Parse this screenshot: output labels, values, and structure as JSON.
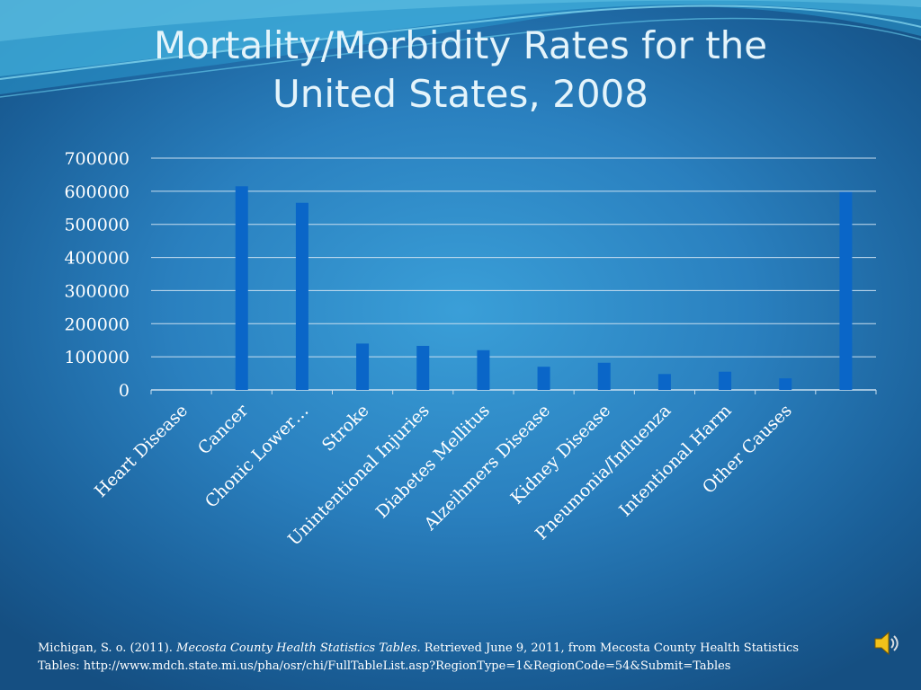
{
  "slide": {
    "title_line1": "Mortality/Morbidity Rates for the",
    "title_line2": "United States, 2008"
  },
  "citation": {
    "author": "Michigan, S. o. (2011). ",
    "work": "Mecosta County Health Statistics Tables.",
    "line1_rest": " Retrieved June 9, 2011, from Mecosta County Health Statistics",
    "line2": "Tables: http://www.mdch.state.mi.us/pha/osr/chi/FullTableList.asp?RegionType=1&RegionCode=54&Submit=Tables"
  },
  "audio": {
    "icon": "speaker-icon"
  },
  "colors": {
    "bar": "#0a66c8",
    "title": "#e4f4fb",
    "axis_text": "#ffffff",
    "gridline": "#c9dff0"
  },
  "chart_data": {
    "type": "bar",
    "categories": [
      "Heart Disease",
      "Cancer",
      "Chonic Lower…",
      "Stroke",
      "Unintentional Injuries",
      "Diabetes Mellitus",
      "Alzeihmers Disease",
      "Kidney Disease",
      "Pneumonia/Influenza",
      "Intentional Harm",
      "Other Causes",
      ""
    ],
    "values": [
      0,
      615000,
      565000,
      140000,
      133000,
      120000,
      70000,
      82000,
      48000,
      55000,
      35000,
      598000
    ],
    "ylim": [
      0,
      700000
    ],
    "yticks": [
      "0",
      "100000",
      "200000",
      "300000",
      "400000",
      "500000",
      "600000",
      "700000"
    ],
    "grid": true,
    "legend": "none"
  }
}
